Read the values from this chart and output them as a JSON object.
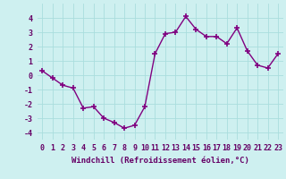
{
  "x": [
    0,
    1,
    2,
    3,
    4,
    5,
    6,
    7,
    8,
    9,
    10,
    11,
    12,
    13,
    14,
    15,
    16,
    17,
    18,
    19,
    20,
    21,
    22,
    23
  ],
  "y": [
    0.3,
    -0.2,
    -0.7,
    -0.9,
    -2.3,
    -2.2,
    -3.0,
    -3.3,
    -3.7,
    -3.5,
    -2.2,
    1.5,
    2.9,
    3.0,
    4.1,
    3.2,
    2.7,
    2.7,
    2.2,
    3.3,
    1.7,
    0.7,
    0.5,
    1.5
  ],
  "line_color": "#800080",
  "marker": "+",
  "marker_size": 4,
  "linewidth": 1.0,
  "bg_color": "#cef0f0",
  "grid_color": "#aadddd",
  "xlabel": "Windchill (Refroidissement éolien,°C)",
  "xlim": [
    -0.5,
    23.5
  ],
  "ylim": [
    -4.5,
    5.0
  ],
  "xticks": [
    0,
    1,
    2,
    3,
    4,
    5,
    6,
    7,
    8,
    9,
    10,
    11,
    12,
    13,
    14,
    15,
    16,
    17,
    18,
    19,
    20,
    21,
    22,
    23
  ],
  "yticks": [
    -4,
    -3,
    -2,
    -1,
    0,
    1,
    2,
    3,
    4
  ],
  "xlabel_fontsize": 6.5,
  "tick_fontsize": 6.0,
  "text_color": "#660066"
}
